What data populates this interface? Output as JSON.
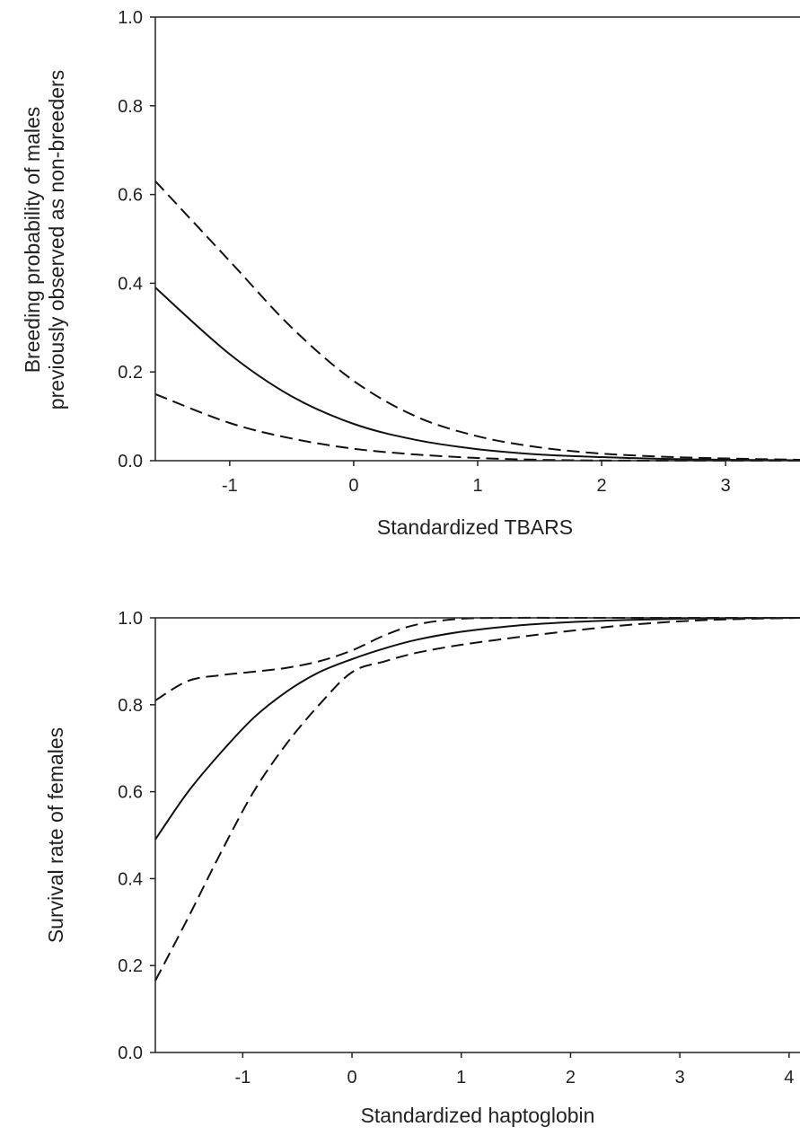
{
  "chart_data": [
    {
      "type": "line",
      "xlabel": "Standardized TBARS",
      "ylabel_lines": [
        "Breeding probability of males",
        "previously observed as non-breeders"
      ],
      "xlim": [
        -1.6,
        3.6
      ],
      "ylim": [
        0,
        1
      ],
      "x_ticks": [
        "-1",
        "0",
        "1",
        "2",
        "3"
      ],
      "y_ticks": [
        "0.0",
        "0.2",
        "0.4",
        "0.6",
        "0.8",
        "1.0"
      ],
      "grid": false,
      "legend": "none",
      "series": [
        {
          "style": "solid",
          "x": [
            -1.6,
            -1.0,
            -0.5,
            0.0,
            0.5,
            1.0,
            1.5,
            2.0,
            2.5,
            3.0,
            3.6
          ],
          "y": [
            0.39,
            0.24,
            0.145,
            0.083,
            0.047,
            0.026,
            0.014,
            0.008,
            0.004,
            0.002,
            0.001
          ]
        },
        {
          "style": "dashed",
          "x": [
            -1.6,
            -1.0,
            -0.5,
            0.0,
            0.5,
            1.0,
            1.5,
            2.0,
            2.5,
            3.0,
            3.6
          ],
          "y": [
            0.63,
            0.45,
            0.3,
            0.18,
            0.1,
            0.055,
            0.03,
            0.016,
            0.009,
            0.005,
            0.002
          ]
        },
        {
          "style": "dashed",
          "x": [
            -1.6,
            -1.0,
            -0.5,
            0.0,
            0.5,
            1.0,
            1.5,
            2.0,
            2.5,
            3.0,
            3.6
          ],
          "y": [
            0.15,
            0.085,
            0.05,
            0.027,
            0.014,
            0.006,
            0.002,
            0.0005,
            0.0,
            0.0,
            0.0
          ]
        }
      ]
    },
    {
      "type": "line",
      "xlabel": "Standardized haptoglobin",
      "ylabel": "Survival rate of females",
      "xlim": [
        -1.8,
        4.1
      ],
      "ylim": [
        0,
        1
      ],
      "x_ticks": [
        "-1",
        "0",
        "1",
        "2",
        "3",
        "4"
      ],
      "y_ticks": [
        "0.0",
        "0.2",
        "0.4",
        "0.6",
        "0.8",
        "1.0"
      ],
      "grid": false,
      "legend": "none",
      "series": [
        {
          "style": "solid",
          "x": [
            -1.8,
            -1.5,
            -1.2,
            -0.9,
            -0.6,
            -0.3,
            0.0,
            0.3,
            0.6,
            1.0,
            1.5,
            2.0,
            2.5,
            3.0,
            3.5,
            4.1
          ],
          "y": [
            0.49,
            0.6,
            0.69,
            0.77,
            0.83,
            0.875,
            0.905,
            0.93,
            0.95,
            0.968,
            0.982,
            0.99,
            0.995,
            0.998,
            0.999,
            1.0
          ]
        },
        {
          "style": "dashed",
          "x": [
            -1.8,
            -1.5,
            -1.2,
            -0.9,
            -0.6,
            -0.3,
            0.0,
            0.3,
            0.6,
            1.0,
            1.5,
            2.0,
            2.5,
            3.0,
            3.5,
            4.1
          ],
          "y": [
            0.81,
            0.855,
            0.868,
            0.876,
            0.885,
            0.9,
            0.925,
            0.96,
            0.985,
            0.998,
            1.0,
            1.0,
            1.0,
            1.0,
            1.0,
            1.0
          ]
        },
        {
          "style": "dashed",
          "x": [
            -1.8,
            -1.5,
            -1.2,
            -0.9,
            -0.6,
            -0.3,
            0.0,
            0.3,
            0.6,
            1.0,
            1.5,
            2.0,
            2.5,
            3.0,
            3.5,
            4.1
          ],
          "y": [
            0.165,
            0.31,
            0.46,
            0.6,
            0.71,
            0.8,
            0.875,
            0.9,
            0.92,
            0.938,
            0.955,
            0.97,
            0.983,
            0.992,
            0.997,
            1.0
          ]
        }
      ]
    }
  ]
}
